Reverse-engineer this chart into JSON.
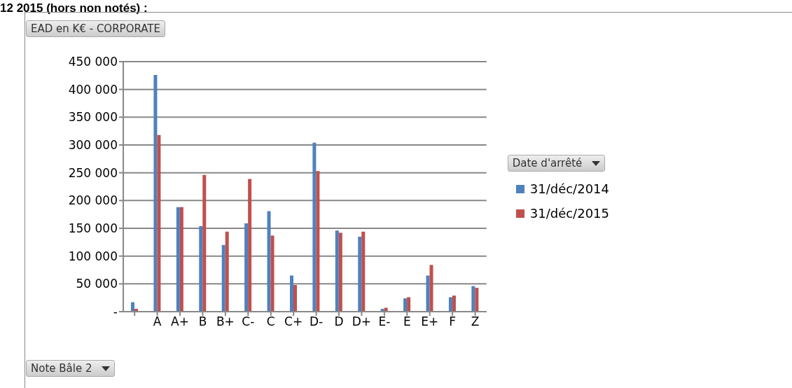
{
  "chart_data": {
    "type": "bar",
    "title": "EAD en K€ - CORPORATE",
    "xlabel": "Note Bâle 2",
    "legend_title": "Date d'arrêté",
    "annotations": [
      "12 2015 (hors non notés) :"
    ],
    "categories": [
      null,
      "A",
      "A+",
      "B",
      "B+",
      "C-",
      "C",
      "C+",
      "D-",
      "D",
      "D+",
      "E-",
      "E",
      "E+",
      "F",
      "Z"
    ],
    "series": [
      {
        "name": "31/déc/2014",
        "color": "#4f81bd",
        "values": [
          17000,
          426000,
          188000,
          154000,
          120000,
          159000,
          181000,
          65000,
          304000,
          146000,
          135000,
          5000,
          24000,
          65000,
          26000,
          46000
        ]
      },
      {
        "name": "31/déc/2015",
        "color": "#c0504d",
        "values": [
          5000,
          318000,
          188000,
          246000,
          144000,
          239000,
          137000,
          48000,
          253000,
          142000,
          144000,
          7000,
          26000,
          84000,
          29000,
          43000
        ]
      }
    ],
    "ylim": [
      0,
      450000
    ],
    "yticks": [
      {
        "value": 0,
        "label": "-"
      },
      {
        "value": 50000,
        "label": "50 000"
      },
      {
        "value": 100000,
        "label": "100 000"
      },
      {
        "value": 150000,
        "label": "150 000"
      },
      {
        "value": 200000,
        "label": "200 000"
      },
      {
        "value": 250000,
        "label": "250 000"
      },
      {
        "value": 300000,
        "label": "300 000"
      },
      {
        "value": 350000,
        "label": "350 000"
      },
      {
        "value": 400000,
        "label": "400 000"
      },
      {
        "value": 450000,
        "label": "450 000"
      }
    ],
    "grid": "y",
    "legend": "right"
  }
}
